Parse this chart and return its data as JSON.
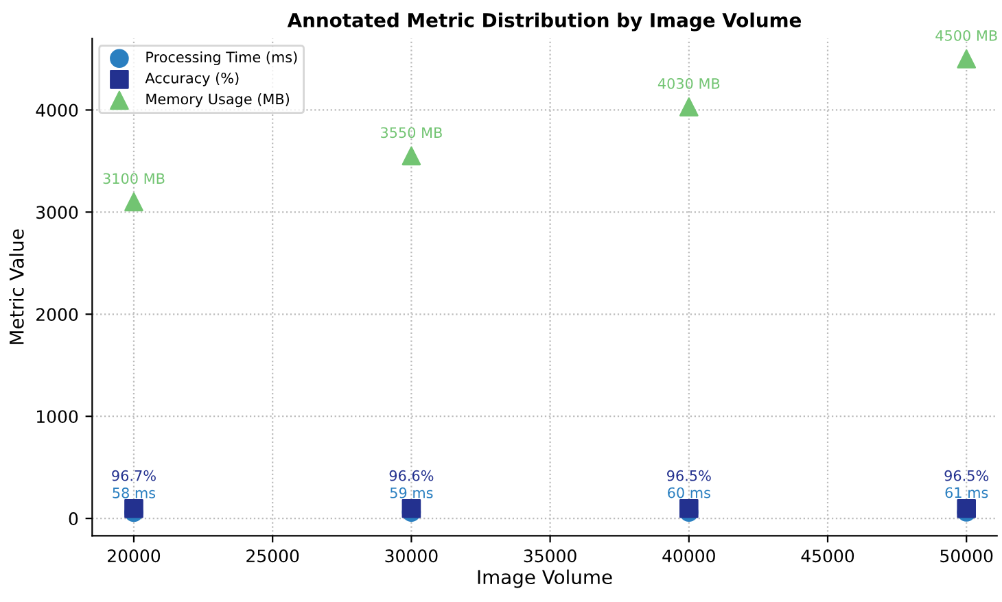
{
  "chart_data": {
    "type": "scatter",
    "title": "Annotated Metric Distribution by Image Volume",
    "xlabel": "Image Volume",
    "ylabel": "Metric Value",
    "x": [
      20000,
      30000,
      40000,
      50000
    ],
    "series": [
      {
        "name": "Processing Time (ms)",
        "color": "#2a7fc0",
        "marker": "circle",
        "values": [
          58,
          59,
          60,
          61
        ],
        "value_labels": [
          "58 ms",
          "59 ms",
          "60 ms",
          "61 ms"
        ]
      },
      {
        "name": "Accuracy (%)",
        "color": "#23318f",
        "marker": "square",
        "values": [
          96.7,
          96.6,
          96.5,
          96.5
        ],
        "value_labels": [
          "96.7%",
          "96.6%",
          "96.5%",
          "96.5%"
        ]
      },
      {
        "name": "Memory Usage (MB)",
        "color": "#72c472",
        "marker": "triangle",
        "values": [
          3100,
          3550,
          4030,
          4500
        ],
        "value_labels": [
          "3100 MB",
          "3550 MB",
          "4030 MB",
          "4500 MB"
        ]
      }
    ],
    "xlim": [
      18500,
      51100
    ],
    "ylim": [
      -170,
      4700
    ],
    "xticks": [
      20000,
      25000,
      30000,
      35000,
      40000,
      45000,
      50000
    ],
    "yticks": [
      0,
      1000,
      2000,
      3000,
      4000
    ],
    "grid": true,
    "legend": "top left"
  }
}
